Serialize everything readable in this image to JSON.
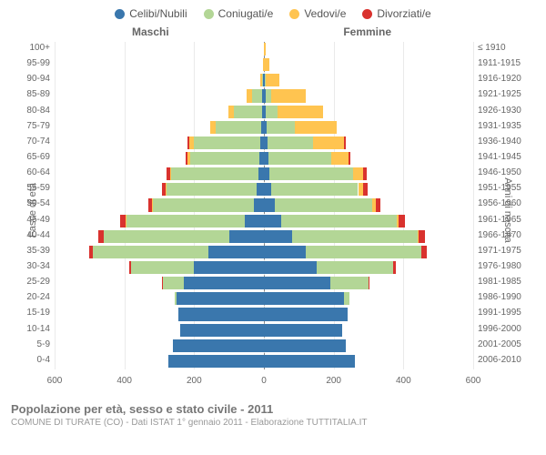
{
  "legend": [
    {
      "label": "Celibi/Nubili",
      "color": "#3a77ad"
    },
    {
      "label": "Coniugati/e",
      "color": "#b3d696"
    },
    {
      "label": "Vedovi/e",
      "color": "#ffc450"
    },
    {
      "label": "Divorziati/e",
      "color": "#d9322e"
    }
  ],
  "gender_left": "Maschi",
  "gender_right": "Femmine",
  "y_axis_left": "Fasce di età",
  "y_axis_right": "Anni di nascita",
  "x_ticks": [
    600,
    400,
    200,
    0,
    200,
    400,
    600
  ],
  "x_max": 600,
  "plot": {
    "bar_border": "#ffffff",
    "grid_color": "#eaeaea",
    "center_dash": "#888888"
  },
  "rows": [
    {
      "age": "100+",
      "birth": "≤ 1910",
      "m": [
        0,
        0,
        0,
        0
      ],
      "f": [
        0,
        0,
        5,
        0
      ]
    },
    {
      "age": "95-99",
      "birth": "1911-1915",
      "m": [
        0,
        0,
        3,
        0
      ],
      "f": [
        0,
        0,
        15,
        0
      ]
    },
    {
      "age": "90-94",
      "birth": "1916-1920",
      "m": [
        2,
        3,
        5,
        0
      ],
      "f": [
        2,
        3,
        40,
        0
      ]
    },
    {
      "age": "85-89",
      "birth": "1921-1925",
      "m": [
        5,
        30,
        15,
        0
      ],
      "f": [
        5,
        15,
        100,
        0
      ]
    },
    {
      "age": "80-84",
      "birth": "1926-1930",
      "m": [
        5,
        80,
        18,
        0
      ],
      "f": [
        5,
        35,
        130,
        0
      ]
    },
    {
      "age": "75-79",
      "birth": "1931-1935",
      "m": [
        8,
        130,
        15,
        0
      ],
      "f": [
        8,
        80,
        120,
        0
      ]
    },
    {
      "age": "70-74",
      "birth": "1936-1940",
      "m": [
        10,
        190,
        15,
        5
      ],
      "f": [
        10,
        130,
        90,
        5
      ]
    },
    {
      "age": "65-69",
      "birth": "1941-1945",
      "m": [
        12,
        200,
        8,
        5
      ],
      "f": [
        12,
        180,
        50,
        5
      ]
    },
    {
      "age": "60-64",
      "birth": "1946-1950",
      "m": [
        15,
        250,
        5,
        8
      ],
      "f": [
        15,
        240,
        30,
        10
      ]
    },
    {
      "age": "55-59",
      "birth": "1951-1955",
      "m": [
        20,
        260,
        3,
        8
      ],
      "f": [
        20,
        250,
        15,
        12
      ]
    },
    {
      "age": "50-54",
      "birth": "1956-1960",
      "m": [
        30,
        290,
        2,
        10
      ],
      "f": [
        30,
        280,
        10,
        15
      ]
    },
    {
      "age": "45-49",
      "birth": "1961-1965",
      "m": [
        55,
        340,
        2,
        15
      ],
      "f": [
        50,
        330,
        5,
        20
      ]
    },
    {
      "age": "40-44",
      "birth": "1966-1970",
      "m": [
        100,
        360,
        0,
        15
      ],
      "f": [
        80,
        360,
        3,
        20
      ]
    },
    {
      "age": "35-39",
      "birth": "1971-1975",
      "m": [
        160,
        330,
        0,
        12
      ],
      "f": [
        120,
        330,
        2,
        15
      ]
    },
    {
      "age": "30-34",
      "birth": "1976-1980",
      "m": [
        200,
        180,
        0,
        5
      ],
      "f": [
        150,
        220,
        0,
        8
      ]
    },
    {
      "age": "25-29",
      "birth": "1981-1985",
      "m": [
        230,
        60,
        0,
        2
      ],
      "f": [
        190,
        110,
        0,
        3
      ]
    },
    {
      "age": "20-24",
      "birth": "1986-1990",
      "m": [
        250,
        5,
        0,
        0
      ],
      "f": [
        230,
        15,
        0,
        0
      ]
    },
    {
      "age": "15-19",
      "birth": "1991-1995",
      "m": [
        245,
        0,
        0,
        0
      ],
      "f": [
        240,
        0,
        0,
        0
      ]
    },
    {
      "age": "10-14",
      "birth": "1996-2000",
      "m": [
        240,
        0,
        0,
        0
      ],
      "f": [
        225,
        0,
        0,
        0
      ]
    },
    {
      "age": "5-9",
      "birth": "2001-2005",
      "m": [
        260,
        0,
        0,
        0
      ],
      "f": [
        235,
        0,
        0,
        0
      ]
    },
    {
      "age": "0-4",
      "birth": "2006-2010",
      "m": [
        275,
        0,
        0,
        0
      ],
      "f": [
        260,
        0,
        0,
        0
      ]
    }
  ],
  "footer_title": "Popolazione per età, sesso e stato civile - 2011",
  "footer_sub": "COMUNE DI TURATE (CO) - Dati ISTAT 1° gennaio 2011 - Elaborazione TUTTITALIA.IT"
}
